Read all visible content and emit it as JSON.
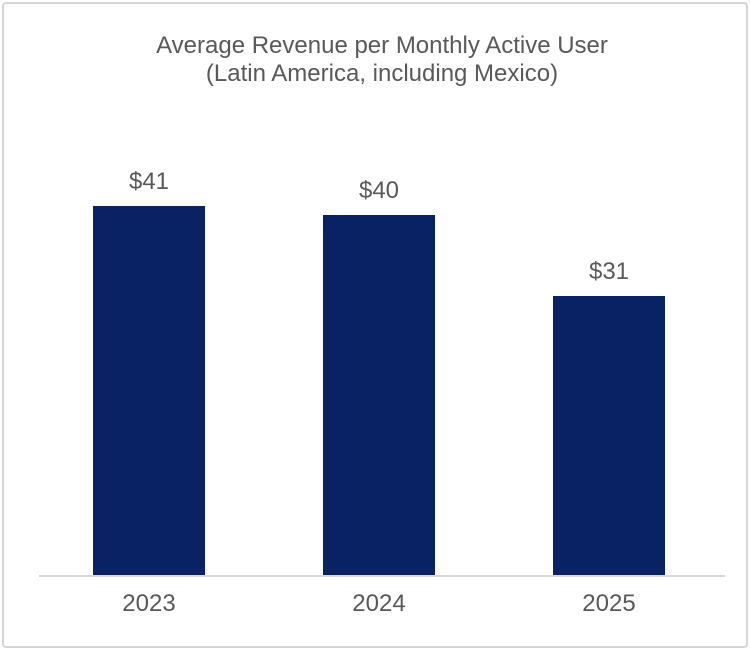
{
  "window": {
    "background_color": "#ffffff",
    "frame_border_color": "#d6d6d6"
  },
  "chart_data": {
    "type": "bar",
    "title": "Average Revenue per Monthly Active User",
    "subtitle": "(Latin America, including Mexico)",
    "categories": [
      "2023",
      "2024",
      "2025"
    ],
    "values": [
      41,
      40,
      31
    ],
    "value_labels": [
      "$41",
      "$40",
      "$31"
    ],
    "ylim": [
      0,
      45
    ],
    "grid": false,
    "legend": "none",
    "y_axis_visible": false,
    "bar_color": "#082263",
    "text_color": "#595959",
    "axis_line_color": "#d9d9d9"
  }
}
